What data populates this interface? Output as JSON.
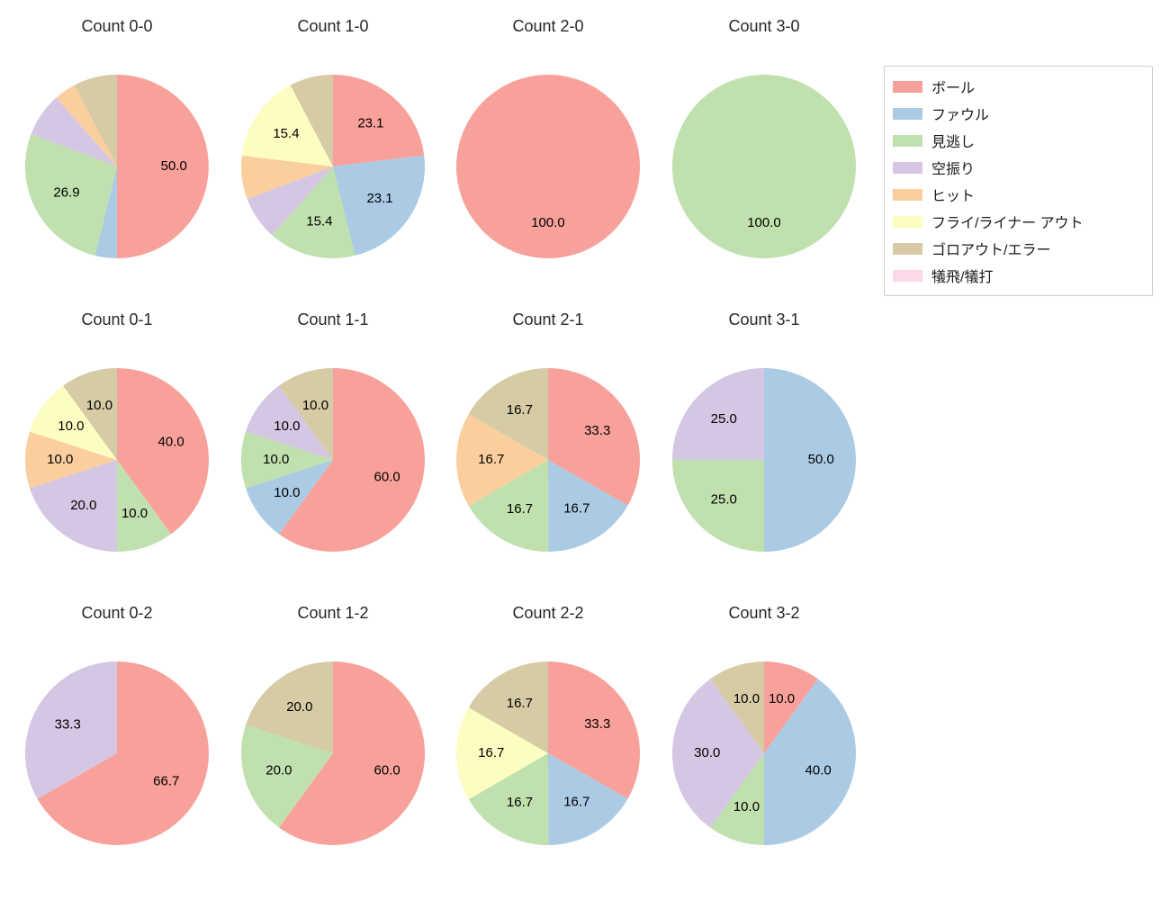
{
  "figure": {
    "background": "#ffffff",
    "title_color": "#262626",
    "label_color": "#000000"
  },
  "legend": {
    "border_color": "#cccccc",
    "items": [
      {
        "label": "ボール",
        "color": "#F8A19B"
      },
      {
        "label": "ファウル",
        "color": "#ABCAE4"
      },
      {
        "label": "見逃し",
        "color": "#C0E0AE"
      },
      {
        "label": "空振り",
        "color": "#D5C6E3"
      },
      {
        "label": "ヒット",
        "color": "#FBCF9D"
      },
      {
        "label": "フライ/ライナー アウト",
        "color": "#FDFDC2"
      },
      {
        "label": "ゴロアウト/エラー",
        "color": "#D6CBA4"
      },
      {
        "label": "犠飛/犠打",
        "color": "#FBD8EA"
      }
    ]
  },
  "layout_hints": {
    "grid_rows": 3,
    "grid_cols": 4,
    "start_angle_deg": 90,
    "clockwise": true,
    "label_min_percent": 10,
    "label_decimals": 1
  },
  "chart_data": [
    {
      "type": "pie",
      "title": "Count 0-0",
      "slices": [
        {
          "category": "ボール",
          "value": 50.0
        },
        {
          "category": "ファウル",
          "value": 3.8
        },
        {
          "category": "見逃し",
          "value": 26.9
        },
        {
          "category": "空振り",
          "value": 7.7
        },
        {
          "category": "ヒット",
          "value": 3.8
        },
        {
          "category": "ゴロアウト/エラー",
          "value": 7.7
        }
      ]
    },
    {
      "type": "pie",
      "title": "Count 1-0",
      "slices": [
        {
          "category": "ボール",
          "value": 23.1
        },
        {
          "category": "ファウル",
          "value": 23.1
        },
        {
          "category": "見逃し",
          "value": 15.4
        },
        {
          "category": "空振り",
          "value": 7.7
        },
        {
          "category": "ヒット",
          "value": 7.7
        },
        {
          "category": "フライ/ライナー アウト",
          "value": 15.4
        },
        {
          "category": "ゴロアウト/エラー",
          "value": 7.7
        }
      ]
    },
    {
      "type": "pie",
      "title": "Count 2-0",
      "slices": [
        {
          "category": "ボール",
          "value": 100.0
        }
      ]
    },
    {
      "type": "pie",
      "title": "Count 3-0",
      "slices": [
        {
          "category": "見逃し",
          "value": 100.0
        }
      ]
    },
    {
      "type": "pie",
      "title": "Count 0-1",
      "slices": [
        {
          "category": "ボール",
          "value": 40.0
        },
        {
          "category": "見逃し",
          "value": 10.0
        },
        {
          "category": "空振り",
          "value": 20.0
        },
        {
          "category": "ヒット",
          "value": 10.0
        },
        {
          "category": "フライ/ライナー アウト",
          "value": 10.0
        },
        {
          "category": "ゴロアウト/エラー",
          "value": 10.0
        }
      ]
    },
    {
      "type": "pie",
      "title": "Count 1-1",
      "slices": [
        {
          "category": "ボール",
          "value": 60.0
        },
        {
          "category": "ファウル",
          "value": 10.0
        },
        {
          "category": "見逃し",
          "value": 10.0
        },
        {
          "category": "空振り",
          "value": 10.0
        },
        {
          "category": "ゴロアウト/エラー",
          "value": 10.0
        }
      ]
    },
    {
      "type": "pie",
      "title": "Count 2-1",
      "slices": [
        {
          "category": "ボール",
          "value": 33.3
        },
        {
          "category": "ファウル",
          "value": 16.7
        },
        {
          "category": "見逃し",
          "value": 16.7
        },
        {
          "category": "ヒット",
          "value": 16.7
        },
        {
          "category": "ゴロアウト/エラー",
          "value": 16.7
        }
      ]
    },
    {
      "type": "pie",
      "title": "Count 3-1",
      "slices": [
        {
          "category": "ファウル",
          "value": 50.0
        },
        {
          "category": "見逃し",
          "value": 25.0
        },
        {
          "category": "空振り",
          "value": 25.0
        }
      ]
    },
    {
      "type": "pie",
      "title": "Count 0-2",
      "slices": [
        {
          "category": "ボール",
          "value": 66.7
        },
        {
          "category": "空振り",
          "value": 33.3
        }
      ]
    },
    {
      "type": "pie",
      "title": "Count 1-2",
      "slices": [
        {
          "category": "ボール",
          "value": 60.0
        },
        {
          "category": "見逃し",
          "value": 20.0
        },
        {
          "category": "ゴロアウト/エラー",
          "value": 20.0
        }
      ]
    },
    {
      "type": "pie",
      "title": "Count 2-2",
      "slices": [
        {
          "category": "ボール",
          "value": 33.3
        },
        {
          "category": "ファウル",
          "value": 16.7
        },
        {
          "category": "見逃し",
          "value": 16.7
        },
        {
          "category": "フライ/ライナー アウト",
          "value": 16.7
        },
        {
          "category": "ゴロアウト/エラー",
          "value": 16.7
        }
      ]
    },
    {
      "type": "pie",
      "title": "Count 3-2",
      "slices": [
        {
          "category": "ボール",
          "value": 10.0
        },
        {
          "category": "ファウル",
          "value": 40.0
        },
        {
          "category": "見逃し",
          "value": 10.0
        },
        {
          "category": "空振り",
          "value": 30.0
        },
        {
          "category": "ゴロアウト/エラー",
          "value": 10.0
        }
      ]
    }
  ]
}
